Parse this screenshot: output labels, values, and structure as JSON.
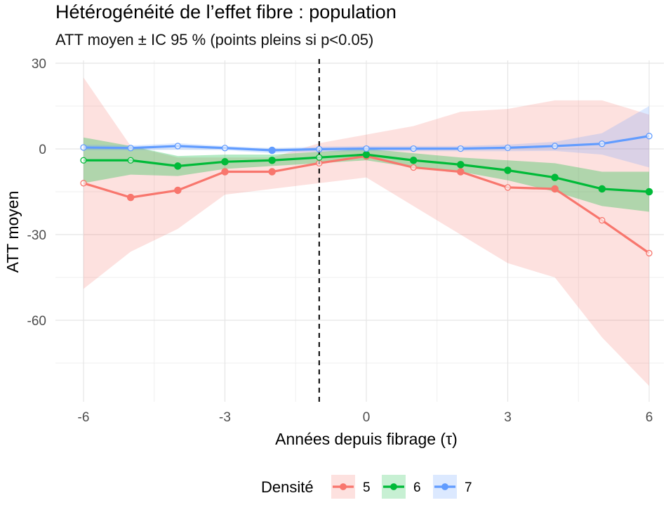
{
  "chart_data": {
    "type": "line",
    "title": "Hétérogénéité de l’effet fibre : population",
    "subtitle": "ATT moyen ± IC 95 % (points pleins si p<0.05)",
    "xlabel": "Années depuis fibrage (τ)",
    "ylabel": "ATT moyen",
    "xlim": [
      -6,
      6
    ],
    "ylim": [
      -83,
      30
    ],
    "x_ticks": [
      -6,
      -3,
      0,
      3,
      6
    ],
    "x_tick_labels": [
      "-6",
      "-3",
      "0",
      "3",
      "6"
    ],
    "y_ticks": [
      30,
      0,
      -30,
      -60
    ],
    "y_tick_labels": [
      "30",
      "0",
      "-30",
      "-60"
    ],
    "vline_x": -1,
    "grid": true,
    "legend": {
      "title": "Densité",
      "position": "bottom"
    },
    "x": [
      -6,
      -5,
      -4,
      -3,
      -2,
      -1,
      0,
      1,
      2,
      3,
      4,
      5,
      6
    ],
    "series": [
      {
        "name": "5",
        "color": "#F8766D",
        "values": [
          -12,
          -17,
          -14.5,
          -8,
          -8,
          -5,
          -2.5,
          -6.5,
          -8,
          -13.5,
          -14,
          -25,
          -36.5
        ],
        "lower": [
          -49,
          -36,
          -28,
          -16,
          -14,
          -12,
          -10,
          -20,
          -30,
          -40,
          -45,
          -66,
          -83
        ],
        "upper": [
          25,
          1,
          -3,
          -3,
          -3,
          2,
          5,
          8,
          13,
          14,
          17,
          17,
          12
        ],
        "significant": [
          false,
          true,
          true,
          true,
          true,
          false,
          true,
          false,
          true,
          false,
          true,
          false,
          false
        ]
      },
      {
        "name": "6",
        "color": "#00BA38",
        "values": [
          -4,
          -4,
          -6,
          -4.5,
          -4,
          -3,
          -2,
          -4,
          -5.5,
          -7.5,
          -10,
          -14,
          -15
        ],
        "lower": [
          -12,
          -9,
          -9.5,
          -7,
          -6,
          -5,
          -4,
          -6.5,
          -8,
          -11,
          -15,
          -20,
          -22
        ],
        "upper": [
          4,
          1,
          -2.5,
          -2,
          -2,
          -1,
          0,
          -1.5,
          -3,
          -4,
          -5,
          -8,
          -8
        ],
        "significant": [
          false,
          false,
          true,
          true,
          true,
          false,
          true,
          true,
          true,
          true,
          true,
          true,
          true
        ]
      },
      {
        "name": "7",
        "color": "#619CFF",
        "values": [
          0.5,
          0.3,
          1,
          0.3,
          -0.5,
          -0.1,
          0.1,
          0.1,
          0.1,
          0.4,
          1,
          1.8,
          4.5
        ],
        "lower": [
          -0.5,
          -0.5,
          -0.3,
          -0.5,
          -1.5,
          -1,
          -0.8,
          -0.8,
          -0.8,
          -0.8,
          -0.7,
          -2,
          -6.5
        ],
        "upper": [
          1.5,
          1.2,
          2,
          1,
          0.3,
          0.8,
          1,
          1,
          1,
          1.5,
          2.5,
          5.5,
          15
        ],
        "significant": [
          false,
          false,
          false,
          false,
          true,
          false,
          false,
          false,
          false,
          false,
          false,
          false,
          false
        ]
      }
    ]
  }
}
